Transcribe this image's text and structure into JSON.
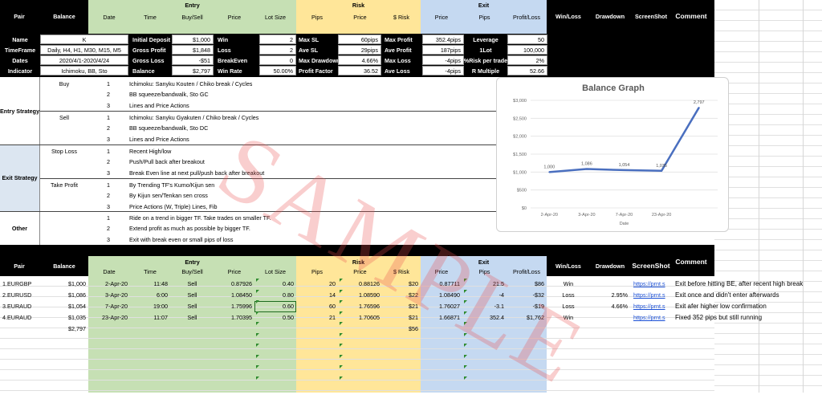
{
  "header": {
    "pair": "Pair",
    "balance": "Balance",
    "entry": "Entry",
    "risk": "Risk",
    "exit": "Exit",
    "date": "Date",
    "time": "Time",
    "buy_sell": "Buy/Sell",
    "price": "Price",
    "lot_size": "Lot Size",
    "pips": "Pips",
    "dollar_risk": "$ Risk",
    "profit_loss": "Profit/Loss",
    "win_loss": "Win/Loss",
    "drawdown": "Drawdown",
    "screenshot": "ScreenShot",
    "comment": "Comment"
  },
  "summary": {
    "rows": [
      {
        "a": "Name",
        "b": "K",
        "c": "Initial Deposit",
        "d": "$1,000",
        "e": "Win",
        "f": "2",
        "g": "Max SL",
        "h": "60pips",
        "i": "Max Profit",
        "j": "352.4pips",
        "k": "Leverage",
        "l": "50"
      },
      {
        "a": "TimeFrame",
        "b": "Daily, H4, H1, M30, M15, M5",
        "c": "Gross Profit",
        "d": "$1,848",
        "e": "Loss",
        "f": "2",
        "g": "Ave SL",
        "h": "29pips",
        "i": "Ave Profit",
        "j": "187pips",
        "k": "1Lot",
        "l": "100,000"
      },
      {
        "a": "Dates",
        "b": "2020/4/1-2020/4/24",
        "c": "Gross Loss",
        "d": "-$51",
        "e": "BreakEven",
        "f": "0",
        "g": "Max Drawdown",
        "h": "4.66%",
        "i": "Max Loss",
        "j": "-4pips",
        "k": "%Risk per trade",
        "l": "2%"
      },
      {
        "a": "Indicator",
        "b": "Ichimoku, BB, Sto",
        "c": "Balance",
        "d": "$2,797",
        "e": "Win Rate",
        "f": "50.00%",
        "g": "Profit Factor",
        "h": "36.52",
        "i": "Ave Loss",
        "j": "-4pips",
        "k": "R Multiple",
        "l": "52.66"
      }
    ]
  },
  "strategy": {
    "entry_label": "Entry Strategy",
    "buy_label": "Buy",
    "sell_label": "Sell",
    "exit_label": "Exit Strategy",
    "stop_loss_label": "Stop Loss",
    "take_profit_label": "Take Profit",
    "other_label": "Other",
    "buy": [
      {
        "n": "1",
        "t": "Ichimoku: Sanyku Kouten / Chiko break / Cycles"
      },
      {
        "n": "2",
        "t": "BB squeeze/bandwalk, Sto GC"
      },
      {
        "n": "3",
        "t": "Lines and Price Actions"
      }
    ],
    "sell": [
      {
        "n": "1",
        "t": "Ichimoku: Sanyku Gyakuten / Chiko break / Cycles"
      },
      {
        "n": "2",
        "t": "BB squeeze/bandwalk, Sto DC"
      },
      {
        "n": "3",
        "t": "Lines and Price Actions"
      }
    ],
    "stop_loss": [
      {
        "n": "1",
        "t": "Recent High/low"
      },
      {
        "n": "2",
        "t": "Push/Pull back after breakout"
      },
      {
        "n": "3",
        "t": "Break Even line at next pull/push back after breakout"
      }
    ],
    "take_profit": [
      {
        "n": "1",
        "t": "By Trending TF's Kumo/Kijun sen"
      },
      {
        "n": "2",
        "t": "By Kijun sen/Tenkan sen cross"
      },
      {
        "n": "3",
        "t": "Price Actions (W, Triple) Lines, Fib"
      }
    ],
    "other": [
      {
        "n": "1",
        "t": "Ride on a trend in bigger TF. Take trades on smaller TF."
      },
      {
        "n": "2",
        "t": "Extend profit as much as possible by bigger TF."
      },
      {
        "n": "3",
        "t": "Exit with break even or small pips of loss"
      }
    ]
  },
  "chart_data": {
    "type": "line",
    "title": "Balance Graph",
    "xlabel": "Date",
    "ylabel": "",
    "categories": [
      "2-Apr-20",
      "3-Apr-20",
      "7-Apr-20",
      "23-Apr-20",
      ""
    ],
    "series": [
      {
        "values": [
          1000,
          1086,
          1054,
          1035,
          2797
        ]
      }
    ],
    "data_labels": [
      "1,000",
      "1,086",
      "1,054",
      "1,035",
      "2,797"
    ],
    "y_ticks": [
      "$0",
      "$500",
      "$1,000",
      "$1,500",
      "$2,000",
      "$2,500",
      "$3,000"
    ],
    "ylim": [
      0,
      3000
    ],
    "color": "#4a6fbf",
    "grid": true
  },
  "trades": [
    {
      "pair": "1.EURGBP",
      "balance": "$1,000",
      "date": "2-Apr-20",
      "time": "11:48",
      "side": "Sell",
      "price": "0.87926",
      "lot": "0.40",
      "pips": "20",
      "rprice": "0.88126",
      "risk": "$20",
      "xprice": "0.87711",
      "xpips": "21.5",
      "pl": "$86",
      "wl": "Win",
      "dd": "",
      "ss": "https://prnt.s",
      "comment": "Exit before hitting BE, after recent high break"
    },
    {
      "pair": "2.EURUSD",
      "balance": "$1,086",
      "date": "3-Apr-20",
      "time": "6:00",
      "side": "Sell",
      "price": "1.08450",
      "lot": "0.80",
      "pips": "14",
      "rprice": "1.08590",
      "risk": "$22",
      "xprice": "1.08490",
      "xpips": "-4",
      "pl": "-$32",
      "wl": "Loss",
      "dd": "2.95%",
      "ss": "https://prnt.s",
      "comment": "Exit once and didn't enter afterwards"
    },
    {
      "pair": "3.EURAUD",
      "balance": "$1,054",
      "date": "7-Apr-20",
      "time": "19:00",
      "side": "Sell",
      "price": "1.75996",
      "lot": "0.60",
      "pips": "60",
      "rprice": "1.76596",
      "risk": "$21",
      "xprice": "1.76027",
      "xpips": "-3.1",
      "pl": "-$19",
      "wl": "Loss",
      "dd": "4.66%",
      "ss": "https://prnt.s",
      "comment": "Exit afer higher low confirmation"
    },
    {
      "pair": "4.EURAUD",
      "balance": "$1,035",
      "date": "23-Apr-20",
      "time": "11:07",
      "side": "Sell",
      "price": "1.70395",
      "lot": "0.50",
      "pips": "21",
      "rprice": "1.70605",
      "risk": "$21",
      "xprice": "1.66871",
      "xpips": "352.4",
      "pl": "$1,762",
      "wl": "Win",
      "dd": "",
      "ss": "https://prnt.s",
      "comment": "Fixed 352 pips but still running"
    }
  ],
  "totals": {
    "balance": "$2,797",
    "risk": "$56"
  },
  "watermark": "SAMPLE"
}
